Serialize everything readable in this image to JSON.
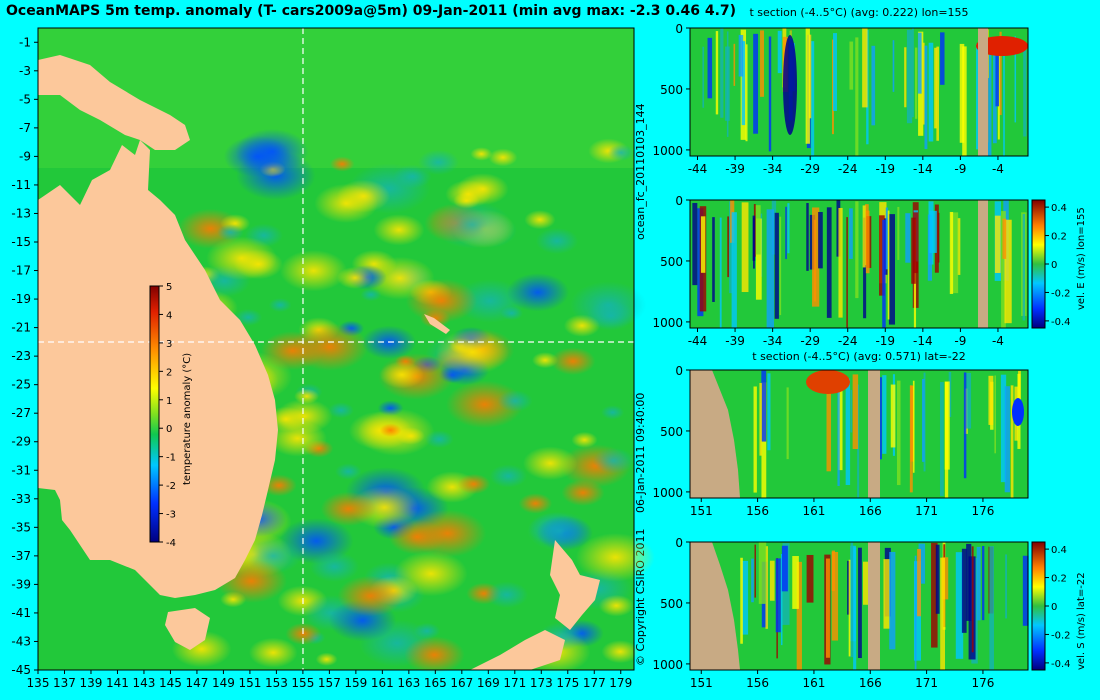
{
  "header": {
    "title": "OceanMAPS 5m temp. anomaly (T- cars2009a@5m) 09-Jan-2011 (min avg max: -2.3 0.46 4.7)"
  },
  "side_text": {
    "run_id": "ocean_fc_20110103_144",
    "timestamp": "06-Jan-2011 09:40:00",
    "copyright": "© Copyright CSIRO 2011"
  },
  "colors": {
    "background": "#00ffff",
    "land": "#fcc89b",
    "section_land": "#c8aa84",
    "crosshair": "#ffffff"
  },
  "chart_data": [
    {
      "type": "heatmap",
      "name": "map",
      "title": "OceanMAPS 5m temp. anomaly (T- cars2009a@5m) 09-Jan-2011 (min avg max: -2.3 0.46 4.7)",
      "x_ticks": [
        "135",
        "137",
        "139",
        "141",
        "143",
        "145",
        "147",
        "149",
        "151",
        "153",
        "155",
        "157",
        "159",
        "161",
        "163",
        "165",
        "167",
        "169",
        "171",
        "173",
        "175",
        "177",
        "179"
      ],
      "y_ticks": [
        "-1",
        "-3",
        "-5",
        "-7",
        "-9",
        "-11",
        "-13",
        "-15",
        "-17",
        "-19",
        "-21",
        "-23",
        "-25",
        "-27",
        "-29",
        "-31",
        "-33",
        "-35",
        "-37",
        "-39",
        "-41",
        "-43",
        "-45"
      ],
      "xlim": [
        135,
        180
      ],
      "ylim": [
        -45,
        0
      ],
      "crosshair": {
        "lon": 155,
        "lat": -22
      },
      "stats": {
        "min": -2.3,
        "avg": 0.46,
        "max": 4.7
      },
      "colorbar": {
        "label": "temperature anomaly (°C)",
        "ticks": [
          "5",
          "4",
          "3",
          "2",
          "1",
          "0",
          "-1",
          "-2",
          "-3",
          "-4"
        ],
        "range": [
          -4,
          5
        ]
      }
    },
    {
      "type": "heatmap",
      "name": "t-section-lon155",
      "title": "t section (-4..5°C) (avg: 0.222) lon=155",
      "x_ticks": [
        "-44",
        "-39",
        "-34",
        "-29",
        "-24",
        "-19",
        "-14",
        "-9",
        "-4"
      ],
      "y_ticks": [
        "0",
        "500",
        "1000"
      ],
      "xlim": [
        -45,
        0
      ],
      "ylim": [
        1050,
        0
      ]
    },
    {
      "type": "heatmap",
      "name": "vel-e-section-lon155",
      "x_ticks": [
        "-44",
        "-39",
        "-34",
        "-29",
        "-24",
        "-19",
        "-14",
        "-9",
        "-4"
      ],
      "y_ticks": [
        "0",
        "500",
        "1000"
      ],
      "colorbar": {
        "label": "vel. E (m/s) lon=155",
        "ticks": [
          "0.4",
          "0.2",
          "0",
          "-0.2",
          "-0.4"
        ],
        "range": [
          -0.45,
          0.45
        ]
      }
    },
    {
      "type": "heatmap",
      "name": "t-section-lat-22",
      "title": "t section (-4..5°C) (avg: 0.571) lat=-22",
      "x_ticks": [
        "151",
        "156",
        "161",
        "166",
        "171",
        "176"
      ],
      "y_ticks": [
        "0",
        "500",
        "1000"
      ],
      "xlim": [
        150,
        180
      ],
      "ylim": [
        1050,
        0
      ]
    },
    {
      "type": "heatmap",
      "name": "vel-s-section-lat-22",
      "x_ticks": [
        "151",
        "156",
        "161",
        "166",
        "171",
        "176"
      ],
      "y_ticks": [
        "0",
        "500",
        "1000"
      ],
      "colorbar": {
        "label": "vel. S (m/s) lat=-22",
        "ticks": [
          "0.4",
          "0.2",
          "0",
          "-0.2",
          "-0.4"
        ],
        "range": [
          -0.45,
          0.45
        ]
      }
    }
  ]
}
